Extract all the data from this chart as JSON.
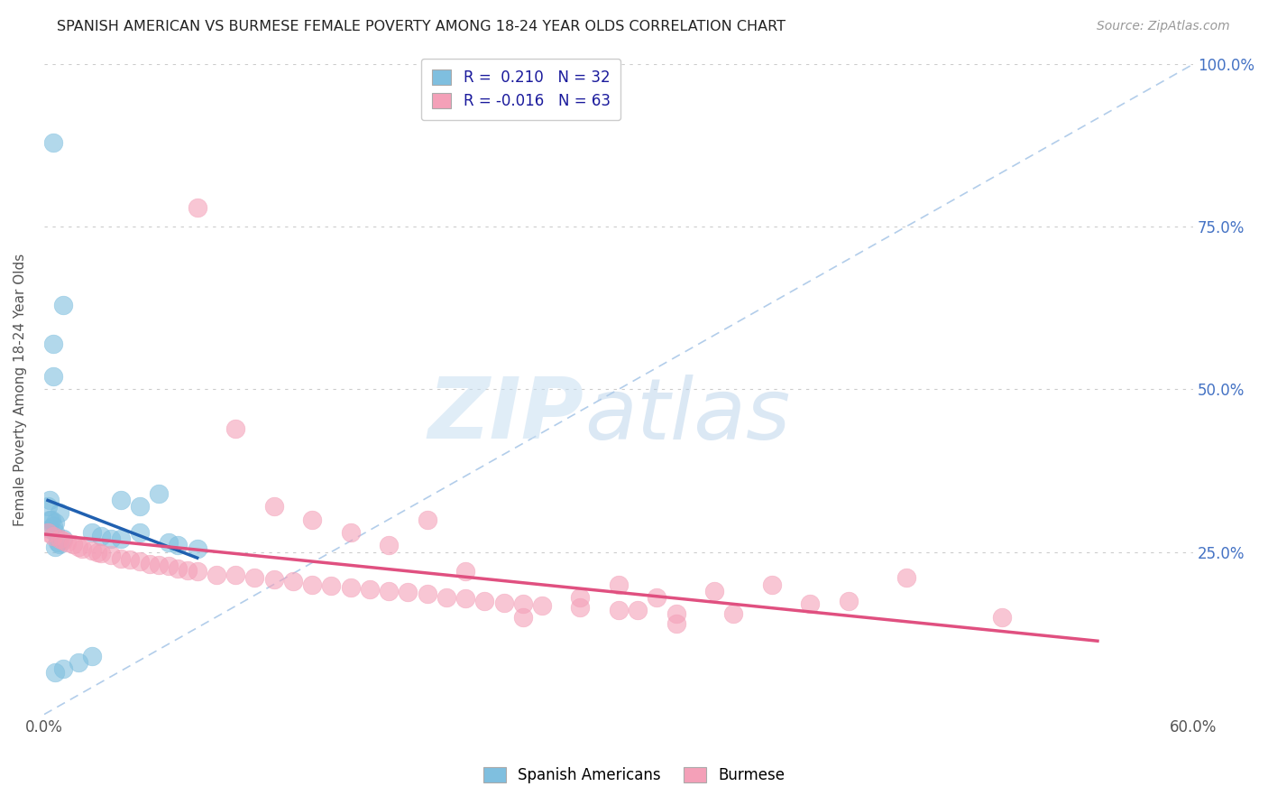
{
  "title": "SPANISH AMERICAN VS BURMESE FEMALE POVERTY AMONG 18-24 YEAR OLDS CORRELATION CHART",
  "source": "Source: ZipAtlas.com",
  "ylabel": "Female Poverty Among 18-24 Year Olds",
  "xlim": [
    0.0,
    0.6
  ],
  "ylim": [
    0.0,
    1.0
  ],
  "blue_color": "#7fbfdf",
  "pink_color": "#f4a0b8",
  "blue_line_color": "#2060b0",
  "pink_line_color": "#e05080",
  "ref_line_color": "#aac8e8",
  "legend_R_blue": "0.210",
  "legend_N_blue": "32",
  "legend_R_pink": "-0.016",
  "legend_N_pink": "63",
  "blue_x": [
    0.005,
    0.01,
    0.005,
    0.005,
    0.003,
    0.002,
    0.008,
    0.003,
    0.004,
    0.006,
    0.005,
    0.003,
    0.006,
    0.01,
    0.007,
    0.008,
    0.006,
    0.04,
    0.05,
    0.06,
    0.025,
    0.03,
    0.035,
    0.04,
    0.05,
    0.065,
    0.07,
    0.08,
    0.025,
    0.018,
    0.01,
    0.006
  ],
  "blue_y": [
    0.88,
    0.63,
    0.57,
    0.52,
    0.33,
    0.32,
    0.31,
    0.3,
    0.3,
    0.295,
    0.29,
    0.285,
    0.28,
    0.27,
    0.265,
    0.262,
    0.258,
    0.33,
    0.32,
    0.34,
    0.28,
    0.275,
    0.27,
    0.27,
    0.28,
    0.265,
    0.26,
    0.255,
    0.09,
    0.08,
    0.07,
    0.065
  ],
  "pink_x": [
    0.002,
    0.005,
    0.008,
    0.01,
    0.012,
    0.015,
    0.018,
    0.02,
    0.025,
    0.028,
    0.03,
    0.035,
    0.04,
    0.045,
    0.05,
    0.055,
    0.06,
    0.065,
    0.07,
    0.075,
    0.08,
    0.09,
    0.1,
    0.11,
    0.12,
    0.13,
    0.14,
    0.15,
    0.16,
    0.17,
    0.18,
    0.19,
    0.2,
    0.21,
    0.22,
    0.23,
    0.24,
    0.25,
    0.26,
    0.28,
    0.3,
    0.31,
    0.32,
    0.33,
    0.35,
    0.36,
    0.38,
    0.4,
    0.42,
    0.45,
    0.08,
    0.1,
    0.12,
    0.14,
    0.16,
    0.18,
    0.2,
    0.22,
    0.25,
    0.28,
    0.3,
    0.33,
    0.5
  ],
  "pink_y": [
    0.28,
    0.275,
    0.27,
    0.268,
    0.265,
    0.262,
    0.258,
    0.255,
    0.252,
    0.25,
    0.248,
    0.245,
    0.24,
    0.238,
    0.235,
    0.232,
    0.23,
    0.228,
    0.225,
    0.222,
    0.22,
    0.215,
    0.215,
    0.21,
    0.208,
    0.205,
    0.2,
    0.198,
    0.195,
    0.192,
    0.19,
    0.188,
    0.185,
    0.18,
    0.178,
    0.175,
    0.172,
    0.17,
    0.168,
    0.165,
    0.2,
    0.16,
    0.18,
    0.155,
    0.19,
    0.155,
    0.2,
    0.17,
    0.175,
    0.21,
    0.78,
    0.44,
    0.32,
    0.3,
    0.28,
    0.26,
    0.3,
    0.22,
    0.15,
    0.18,
    0.16,
    0.14,
    0.15
  ]
}
